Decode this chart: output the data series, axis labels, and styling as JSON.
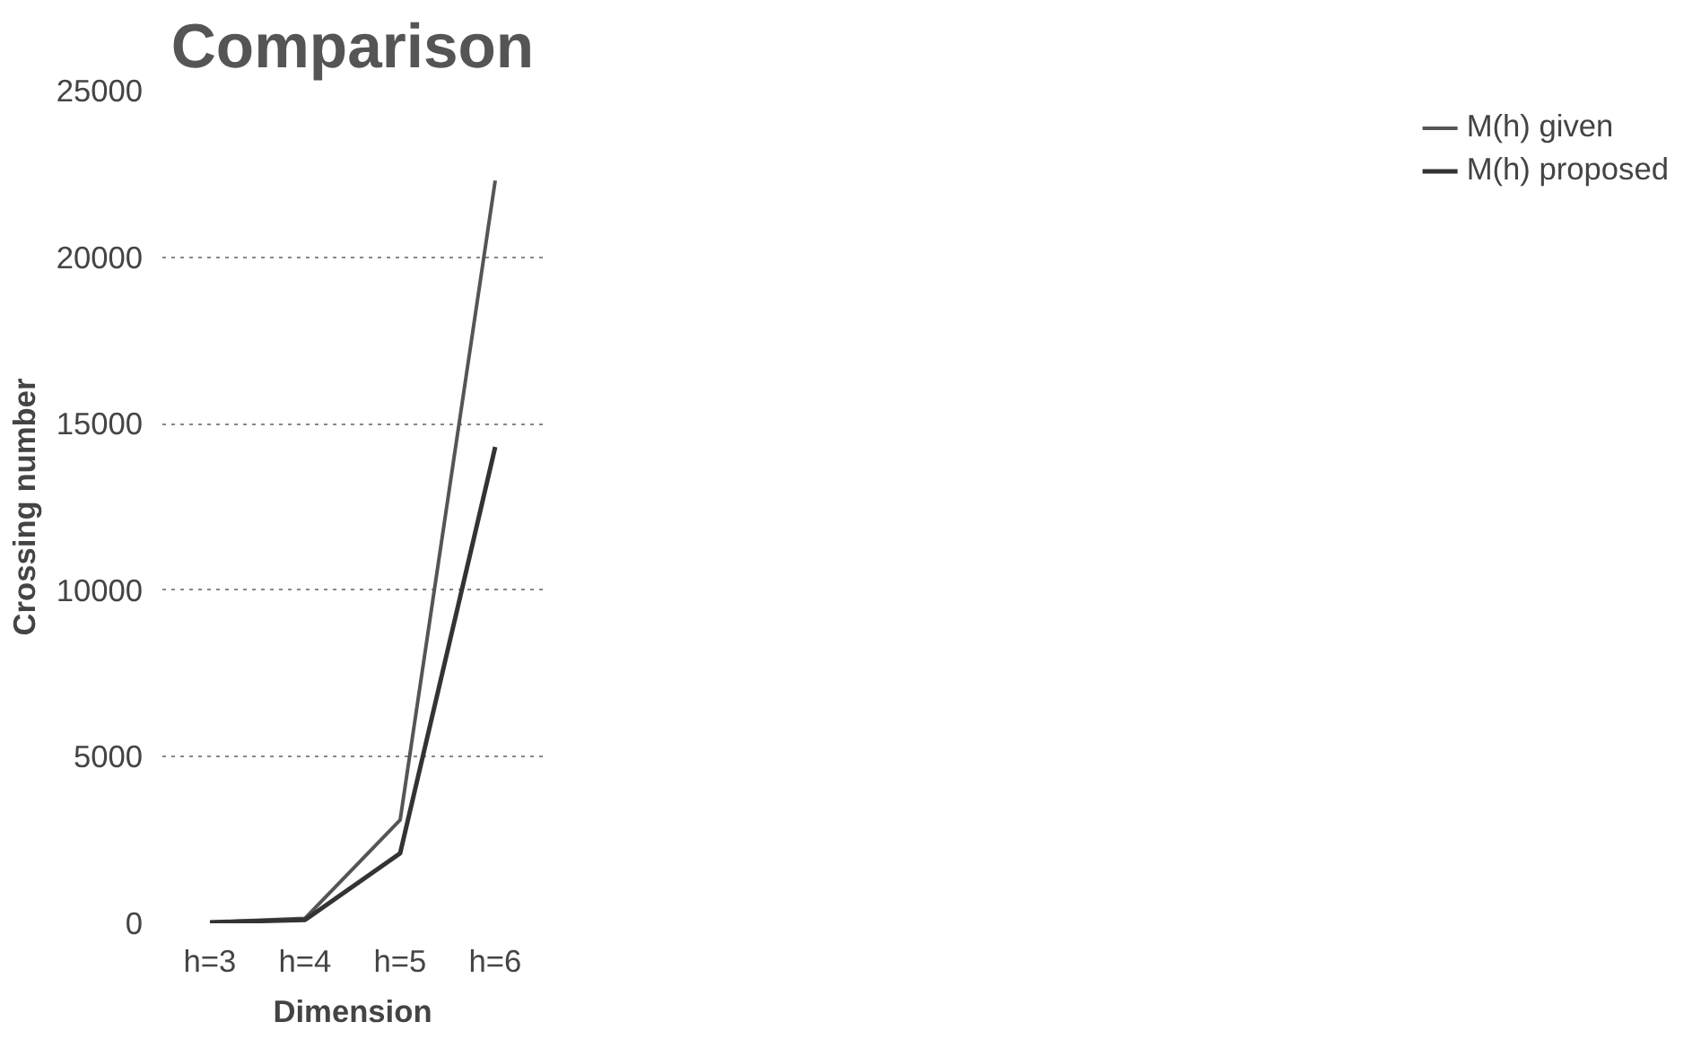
{
  "chart_data": {
    "type": "line",
    "title": "Comparison",
    "xlabel": "Dimension",
    "ylabel": "Crossing number",
    "categories": [
      "h=3",
      "h=4",
      "h=5",
      "h=6"
    ],
    "series": [
      {
        "name": "M(h) given",
        "color": "#555555",
        "values": [
          30,
          150,
          3100,
          22300
        ]
      },
      {
        "name": "M(h) proposed",
        "color": "#333333",
        "values": [
          30,
          100,
          2100,
          14300
        ]
      }
    ],
    "ylim": [
      0,
      25000
    ],
    "yticks": [
      0,
      5000,
      10000,
      15000,
      20000,
      25000
    ],
    "grid": "y",
    "legend": "right",
    "marker": "none",
    "line_style": "solid"
  }
}
